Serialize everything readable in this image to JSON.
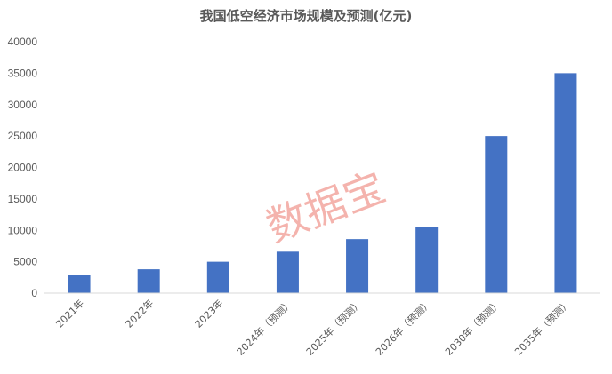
{
  "chart_data": {
    "type": "bar",
    "title": "我国低空经济市场规模及预测(亿元)",
    "categories": [
      "2021年",
      "2022年",
      "2023年",
      "2024年（预测）",
      "2025年（预测）",
      "2026年（预测）",
      "2030年（预测）",
      "2035年（预测）"
    ],
    "series": [
      {
        "values": [
          2900,
          3800,
          5000,
          6600,
          8600,
          10500,
          25000,
          35000
        ]
      }
    ],
    "ylim": [
      0,
      40000
    ],
    "yticks": [
      0,
      5000,
      10000,
      15000,
      20000,
      25000,
      30000,
      35000,
      40000
    ],
    "bar_color": "#4472c4",
    "gridlines": false,
    "legend": "none",
    "xlabel": "",
    "ylabel": ""
  },
  "watermark": {
    "text": "数据宝",
    "color": "#f19a92"
  }
}
